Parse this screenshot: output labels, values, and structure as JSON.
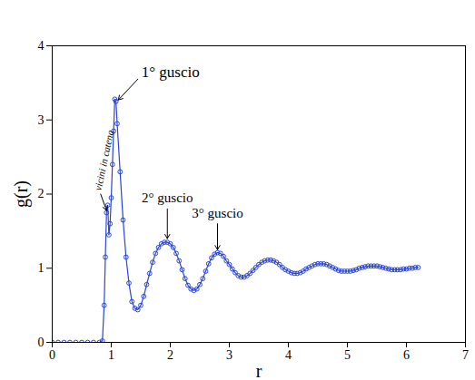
{
  "chart_data": {
    "type": "line",
    "xlabel": "r",
    "ylabel": "g(r)",
    "xlim": [
      0,
      7
    ],
    "ylim": [
      0,
      4
    ],
    "xticks": [
      0,
      1,
      2,
      3,
      4,
      5,
      6,
      7
    ],
    "yticks": [
      0,
      1,
      2,
      3,
      4
    ],
    "grid": false,
    "series": [
      {
        "name": "g(r)",
        "color": "#2a46d8",
        "marker": "circle",
        "line_style": "solid",
        "x": [
          0.0,
          0.1,
          0.2,
          0.3,
          0.4,
          0.5,
          0.6,
          0.7,
          0.8,
          0.85,
          0.88,
          0.9,
          0.92,
          0.94,
          0.96,
          0.98,
          1.0,
          1.02,
          1.04,
          1.06,
          1.08,
          1.1,
          1.15,
          1.2,
          1.25,
          1.3,
          1.35,
          1.4,
          1.45,
          1.5,
          1.55,
          1.6,
          1.65,
          1.7,
          1.75,
          1.8,
          1.85,
          1.9,
          1.95,
          2.0,
          2.05,
          2.1,
          2.15,
          2.2,
          2.25,
          2.3,
          2.35,
          2.4,
          2.45,
          2.5,
          2.55,
          2.6,
          2.65,
          2.7,
          2.75,
          2.8,
          2.85,
          2.9,
          2.95,
          3.0,
          3.05,
          3.1,
          3.15,
          3.2,
          3.25,
          3.3,
          3.35,
          3.4,
          3.45,
          3.5,
          3.55,
          3.6,
          3.65,
          3.7,
          3.75,
          3.8,
          3.85,
          3.9,
          3.95,
          4.0,
          4.05,
          4.1,
          4.15,
          4.2,
          4.25,
          4.3,
          4.35,
          4.4,
          4.45,
          4.5,
          4.55,
          4.6,
          4.65,
          4.7,
          4.75,
          4.8,
          4.85,
          4.9,
          4.95,
          5.0,
          5.05,
          5.1,
          5.15,
          5.2,
          5.25,
          5.3,
          5.35,
          5.4,
          5.45,
          5.5,
          5.55,
          5.6,
          5.65,
          5.7,
          5.75,
          5.8,
          5.85,
          5.9,
          5.95,
          6.0,
          6.05,
          6.1,
          6.15,
          6.2
        ],
        "values": [
          0,
          0,
          0,
          0,
          0,
          0,
          0,
          0,
          0,
          0.02,
          0.5,
          1.15,
          1.75,
          1.85,
          1.45,
          1.6,
          1.95,
          2.4,
          2.85,
          3.28,
          3.25,
          2.95,
          2.3,
          1.65,
          1.15,
          0.8,
          0.55,
          0.46,
          0.44,
          0.5,
          0.62,
          0.78,
          0.93,
          1.08,
          1.2,
          1.28,
          1.33,
          1.35,
          1.35,
          1.33,
          1.28,
          1.2,
          1.1,
          0.98,
          0.86,
          0.77,
          0.72,
          0.7,
          0.72,
          0.78,
          0.86,
          0.96,
          1.06,
          1.14,
          1.19,
          1.21,
          1.2,
          1.16,
          1.1,
          1.05,
          0.99,
          0.94,
          0.9,
          0.88,
          0.88,
          0.9,
          0.93,
          0.97,
          1.01,
          1.05,
          1.08,
          1.1,
          1.11,
          1.11,
          1.1,
          1.08,
          1.05,
          1.01,
          0.98,
          0.96,
          0.94,
          0.93,
          0.93,
          0.94,
          0.96,
          0.99,
          1.01,
          1.03,
          1.05,
          1.06,
          1.06,
          1.06,
          1.05,
          1.03,
          1.01,
          0.99,
          0.97,
          0.96,
          0.96,
          0.96,
          0.96,
          0.97,
          0.98,
          1.0,
          1.01,
          1.02,
          1.03,
          1.03,
          1.03,
          1.03,
          1.02,
          1.01,
          1.0,
          0.99,
          0.98,
          0.98,
          0.98,
          0.98,
          0.99,
          0.99,
          1.0,
          1.0,
          1.01,
          1.01
        ]
      }
    ],
    "annotations": [
      {
        "text": "vicini in catena",
        "xy": [
          0.92,
          1.78
        ],
        "xytext": [
          0.82,
          2.0
        ]
      },
      {
        "text": "1° guscio",
        "xy": [
          1.12,
          3.27
        ],
        "xytext": [
          1.45,
          3.55
        ]
      },
      {
        "text": "2° guscio",
        "xy": [
          1.95,
          1.4
        ],
        "xytext": [
          1.95,
          1.8
        ]
      },
      {
        "text": "3° guscio",
        "xy": [
          2.8,
          1.25
        ],
        "xytext": [
          2.8,
          1.6
        ]
      }
    ]
  }
}
